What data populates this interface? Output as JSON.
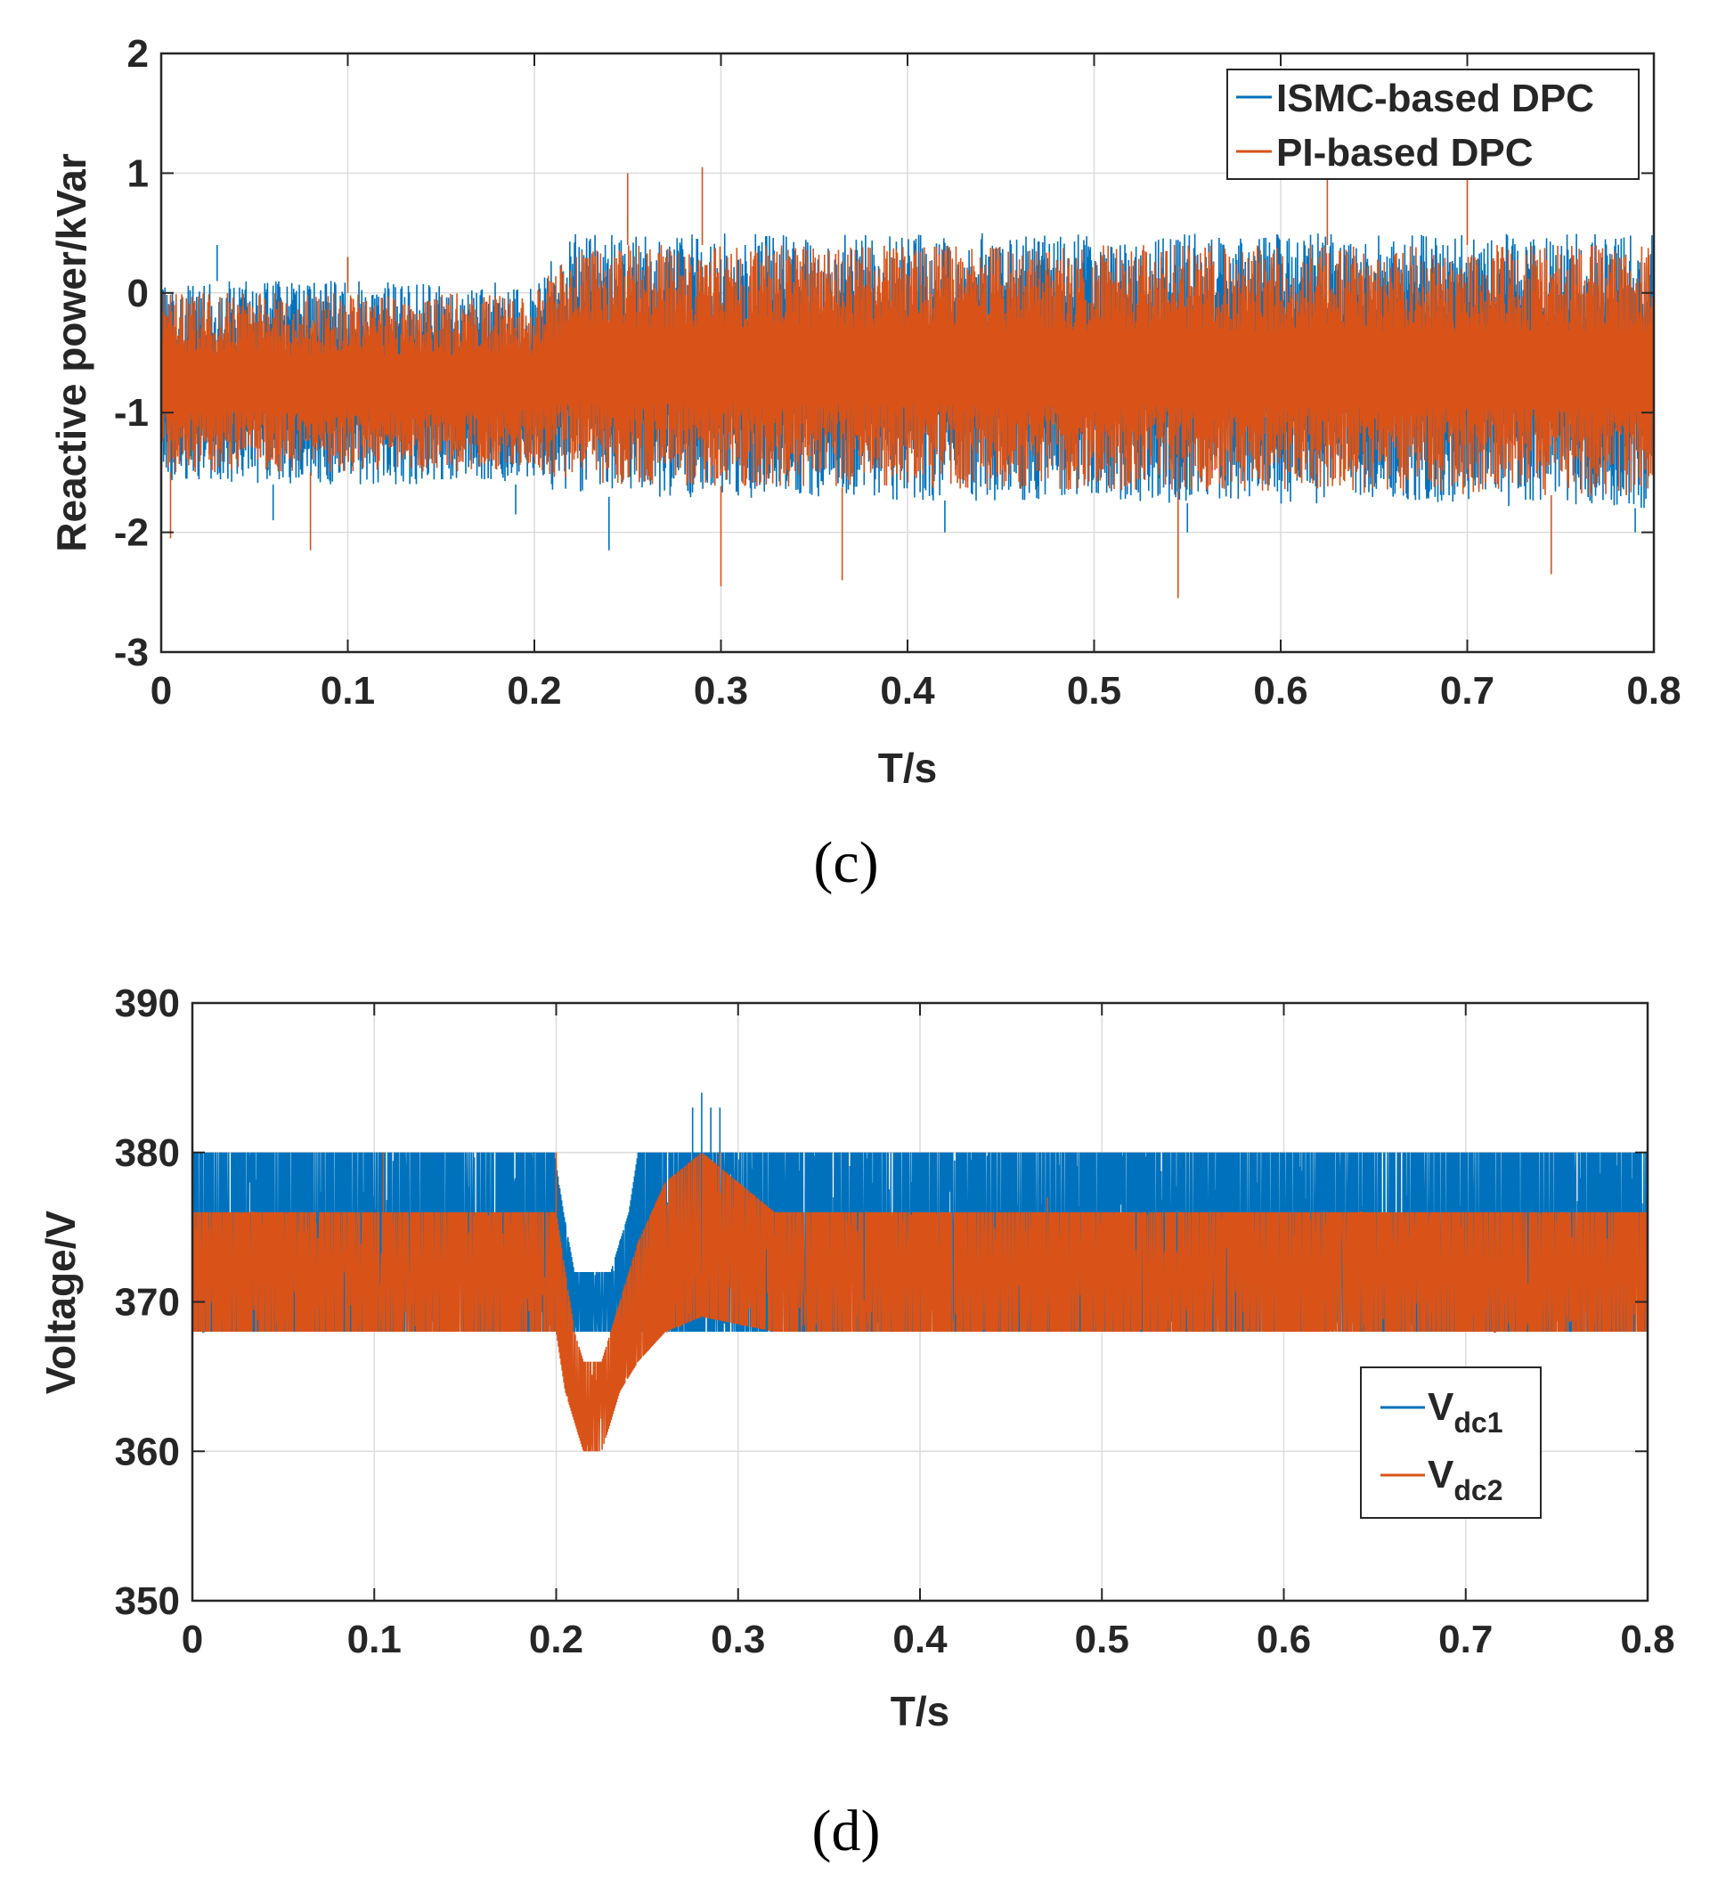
{
  "colors": {
    "series1": "#0072BD",
    "series2": "#D95319",
    "grid": "#dcdcdc",
    "axis": "#262626"
  },
  "chart_data": [
    {
      "type": "line",
      "panel_label": "(c)",
      "title": "",
      "xlabel": "T/s",
      "ylabel": "Reactive power/kVar",
      "xlim": [
        0,
        0.8
      ],
      "ylim": [
        -3,
        2
      ],
      "xticks": [
        0,
        0.1,
        0.2,
        0.3,
        0.4,
        0.5,
        0.6,
        0.7,
        0.8
      ],
      "xtick_labels": [
        "0",
        "0.1",
        "0.2",
        "0.3",
        "0.4",
        "0.5",
        "0.6",
        "0.7",
        "0.8"
      ],
      "yticks": [
        -3,
        -2,
        -1,
        0,
        1,
        2
      ],
      "ytick_labels": [
        "-3",
        "-2",
        "-1",
        "0",
        "1",
        "2"
      ],
      "grid": true,
      "legend_position": "top-right",
      "series": [
        {
          "name": "ISMC-based DPC",
          "color": "#0072BD",
          "envelope": [
            {
              "x": 0.0,
              "low": -1.6,
              "high": 0.1
            },
            {
              "x": 0.2,
              "low": -1.6,
              "high": 0.1
            },
            {
              "x": 0.22,
              "low": -1.7,
              "high": 0.5
            },
            {
              "x": 0.8,
              "low": -1.8,
              "high": 0.5
            }
          ],
          "spikes": [
            {
              "x": 0.03,
              "y": 0.4
            },
            {
              "x": 0.1,
              "y": 0.3
            },
            {
              "x": 0.25,
              "y": 0.65
            },
            {
              "x": 0.06,
              "y": -1.9
            },
            {
              "x": 0.19,
              "y": -1.85
            },
            {
              "x": 0.24,
              "y": -2.15
            },
            {
              "x": 0.42,
              "y": -2.0
            },
            {
              "x": 0.55,
              "y": -2.0
            },
            {
              "x": 0.79,
              "y": -2.0
            }
          ]
        },
        {
          "name": "PI-based DPC",
          "color": "#D95319",
          "envelope": [
            {
              "x": 0.0,
              "low": -1.5,
              "high": 0.0
            },
            {
              "x": 0.2,
              "low": -1.5,
              "high": 0.0
            },
            {
              "x": 0.22,
              "low": -1.6,
              "high": 0.4
            },
            {
              "x": 0.8,
              "low": -1.7,
              "high": 0.4
            }
          ],
          "spikes": [
            {
              "x": 0.005,
              "y": -2.05
            },
            {
              "x": 0.08,
              "y": -2.15
            },
            {
              "x": 0.1,
              "y": 0.3
            },
            {
              "x": 0.25,
              "y": 1.0
            },
            {
              "x": 0.29,
              "y": 1.05
            },
            {
              "x": 0.3,
              "y": -2.45
            },
            {
              "x": 0.365,
              "y": -2.4
            },
            {
              "x": 0.545,
              "y": -2.55
            },
            {
              "x": 0.625,
              "y": 1.15
            },
            {
              "x": 0.745,
              "y": -2.35
            },
            {
              "x": 0.7,
              "y": 0.95
            }
          ]
        }
      ]
    },
    {
      "type": "line",
      "panel_label": "(d)",
      "title": "",
      "xlabel": "T/s",
      "ylabel": "Voltage/V",
      "xlim": [
        0,
        0.8
      ],
      "ylim": [
        350,
        390
      ],
      "xticks": [
        0,
        0.1,
        0.2,
        0.3,
        0.4,
        0.5,
        0.6,
        0.7,
        0.8
      ],
      "xtick_labels": [
        "0",
        "0.1",
        "0.2",
        "0.3",
        "0.4",
        "0.5",
        "0.6",
        "0.7",
        "0.8"
      ],
      "yticks": [
        350,
        360,
        370,
        380,
        390
      ],
      "ytick_labels": [
        "350",
        "360",
        "370",
        "380",
        "390"
      ],
      "grid": true,
      "legend_position": "right",
      "series": [
        {
          "name": "V",
          "subscript": "dc1",
          "color": "#0072BD",
          "envelope": [
            {
              "x": 0.0,
              "low": 368,
              "high": 380
            },
            {
              "x": 0.199,
              "low": 368,
              "high": 380
            },
            {
              "x": 0.204,
              "low": 368,
              "high": 376
            },
            {
              "x": 0.21,
              "low": 368,
              "high": 372
            },
            {
              "x": 0.23,
              "low": 368,
              "high": 372
            },
            {
              "x": 0.24,
              "low": 368,
              "high": 376
            },
            {
              "x": 0.245,
              "low": 368,
              "high": 380
            },
            {
              "x": 0.8,
              "low": 368,
              "high": 380
            }
          ],
          "spikes": [
            {
              "x": 0.275,
              "y": 383
            },
            {
              "x": 0.28,
              "y": 384
            },
            {
              "x": 0.285,
              "y": 383
            },
            {
              "x": 0.29,
              "y": 383
            }
          ]
        },
        {
          "name": "V",
          "subscript": "dc2",
          "color": "#D95319",
          "envelope": [
            {
              "x": 0.0,
              "low": 368,
              "high": 376
            },
            {
              "x": 0.2,
              "low": 368,
              "high": 376
            },
            {
              "x": 0.205,
              "low": 364,
              "high": 372
            },
            {
              "x": 0.21,
              "low": 362,
              "high": 368
            },
            {
              "x": 0.215,
              "low": 360,
              "high": 366
            },
            {
              "x": 0.225,
              "low": 360,
              "high": 366
            },
            {
              "x": 0.235,
              "low": 364,
              "high": 370
            },
            {
              "x": 0.245,
              "low": 366,
              "high": 374
            },
            {
              "x": 0.26,
              "low": 368,
              "high": 378
            },
            {
              "x": 0.28,
              "low": 369,
              "high": 380
            },
            {
              "x": 0.32,
              "low": 368,
              "high": 376
            },
            {
              "x": 0.8,
              "low": 368,
              "high": 376
            }
          ],
          "spikes": [
            {
              "x": 0.105,
              "y": 380
            },
            {
              "x": 0.2,
              "y": 380
            },
            {
              "x": 0.47,
              "y": 377
            },
            {
              "x": 0.26,
              "y": 369
            },
            {
              "x": 0.29,
              "y": 380
            }
          ]
        }
      ]
    }
  ]
}
